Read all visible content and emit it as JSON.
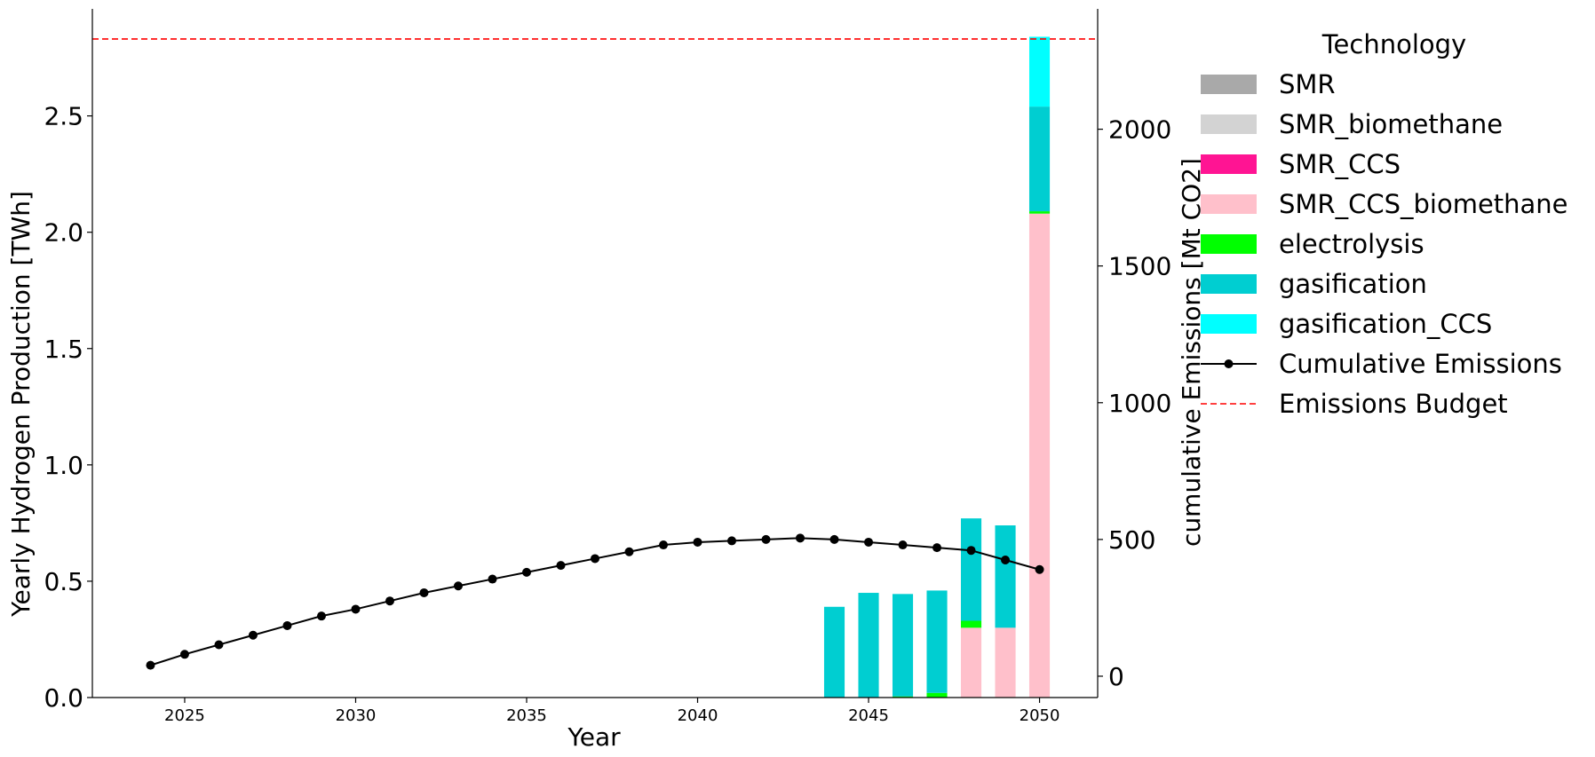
{
  "chart_data": {
    "type": "bar",
    "xlabel": "Year",
    "ylabel": "Yearly Hydrogen Production [TWh]",
    "y2label": "cumulative Emissions [Mt CO2]",
    "xlim": [
      2022.3,
      2051.7
    ],
    "ylim": [
      0,
      2.96
    ],
    "y2lim": [
      -78,
      2440
    ],
    "x_ticks": [
      2025,
      2030,
      2035,
      2040,
      2045,
      2050
    ],
    "y_ticks": [
      0.0,
      0.5,
      1.0,
      1.5,
      2.0,
      2.5
    ],
    "y_tick_labels": [
      "0.0",
      "0.5",
      "1.0",
      "1.5",
      "2.0",
      "2.5"
    ],
    "y2_ticks": [
      0,
      500,
      1000,
      1500,
      2000
    ],
    "y2_tick_labels": [
      "0",
      "500",
      "1000",
      "1500",
      "2000"
    ],
    "bar_width_years": 0.6,
    "categories": [
      2024,
      2025,
      2026,
      2027,
      2028,
      2029,
      2030,
      2031,
      2032,
      2033,
      2034,
      2035,
      2036,
      2037,
      2038,
      2039,
      2040,
      2041,
      2042,
      2043,
      2044,
      2045,
      2046,
      2047,
      2048,
      2049,
      2050
    ],
    "series": [
      {
        "name": "SMR",
        "color": "#a9a9a9",
        "values": [
          0,
          0,
          0,
          0,
          0,
          0,
          0,
          0,
          0,
          0,
          0,
          0,
          0,
          0,
          0,
          0,
          0,
          0,
          0,
          0,
          0,
          0,
          0,
          0,
          0,
          0,
          0
        ]
      },
      {
        "name": "SMR_biomethane",
        "color": "#d3d3d3",
        "values": [
          0,
          0,
          0,
          0,
          0,
          0,
          0,
          0,
          0,
          0,
          0,
          0,
          0,
          0,
          0,
          0,
          0,
          0,
          0,
          0,
          0,
          0,
          0,
          0,
          0,
          0,
          0
        ]
      },
      {
        "name": "SMR_CCS",
        "color": "#ff1493",
        "values": [
          0,
          0,
          0,
          0,
          0,
          0,
          0,
          0,
          0,
          0,
          0,
          0,
          0,
          0,
          0,
          0,
          0,
          0,
          0,
          0,
          0,
          0,
          0,
          0,
          0,
          0,
          0
        ]
      },
      {
        "name": "SMR_CCS_biomethane",
        "color": "#ffc0cb",
        "values": [
          0,
          0,
          0,
          0,
          0,
          0,
          0,
          0,
          0,
          0,
          0,
          0,
          0,
          0,
          0,
          0,
          0,
          0,
          0,
          0,
          0,
          0,
          0,
          0,
          0.3,
          0.3,
          2.08
        ]
      },
      {
        "name": "electrolysis",
        "color": "#00ff00",
        "values": [
          0,
          0,
          0,
          0,
          0,
          0,
          0,
          0,
          0,
          0,
          0,
          0,
          0,
          0,
          0,
          0,
          0,
          0,
          0,
          0,
          0,
          0,
          0.005,
          0.02,
          0.03,
          0,
          0.01
        ]
      },
      {
        "name": "gasification",
        "color": "#00ced1",
        "values": [
          0,
          0,
          0,
          0,
          0,
          0,
          0,
          0,
          0,
          0,
          0,
          0,
          0,
          0,
          0,
          0,
          0,
          0,
          0,
          0,
          0.39,
          0.45,
          0.44,
          0.44,
          0.44,
          0.44,
          0.45
        ]
      },
      {
        "name": "gasification_CCS",
        "color": "#00ffff",
        "values": [
          0,
          0,
          0,
          0,
          0,
          0,
          0,
          0,
          0,
          0,
          0,
          0,
          0,
          0,
          0,
          0,
          0,
          0,
          0,
          0,
          0,
          0,
          0,
          0,
          0,
          0,
          0.3
        ]
      }
    ],
    "cumulative_emissions": {
      "name": "Cumulative Emissions",
      "color": "#000000",
      "x": [
        2024,
        2025,
        2026,
        2027,
        2028,
        2029,
        2030,
        2031,
        2032,
        2033,
        2034,
        2035,
        2036,
        2037,
        2038,
        2039,
        2040,
        2041,
        2042,
        2043,
        2044,
        2045,
        2046,
        2047,
        2048,
        2049,
        2050
      ],
      "values": [
        40,
        80,
        115,
        150,
        185,
        220,
        245,
        275,
        305,
        330,
        355,
        380,
        405,
        430,
        455,
        480,
        490,
        495,
        500,
        505,
        500,
        490,
        480,
        470,
        460,
        425,
        390
      ]
    },
    "emissions_budget": {
      "name": "Emissions Budget",
      "color": "#ff0000",
      "value": 2330
    },
    "legend": {
      "title": "Technology",
      "placement": "outside-right"
    }
  }
}
